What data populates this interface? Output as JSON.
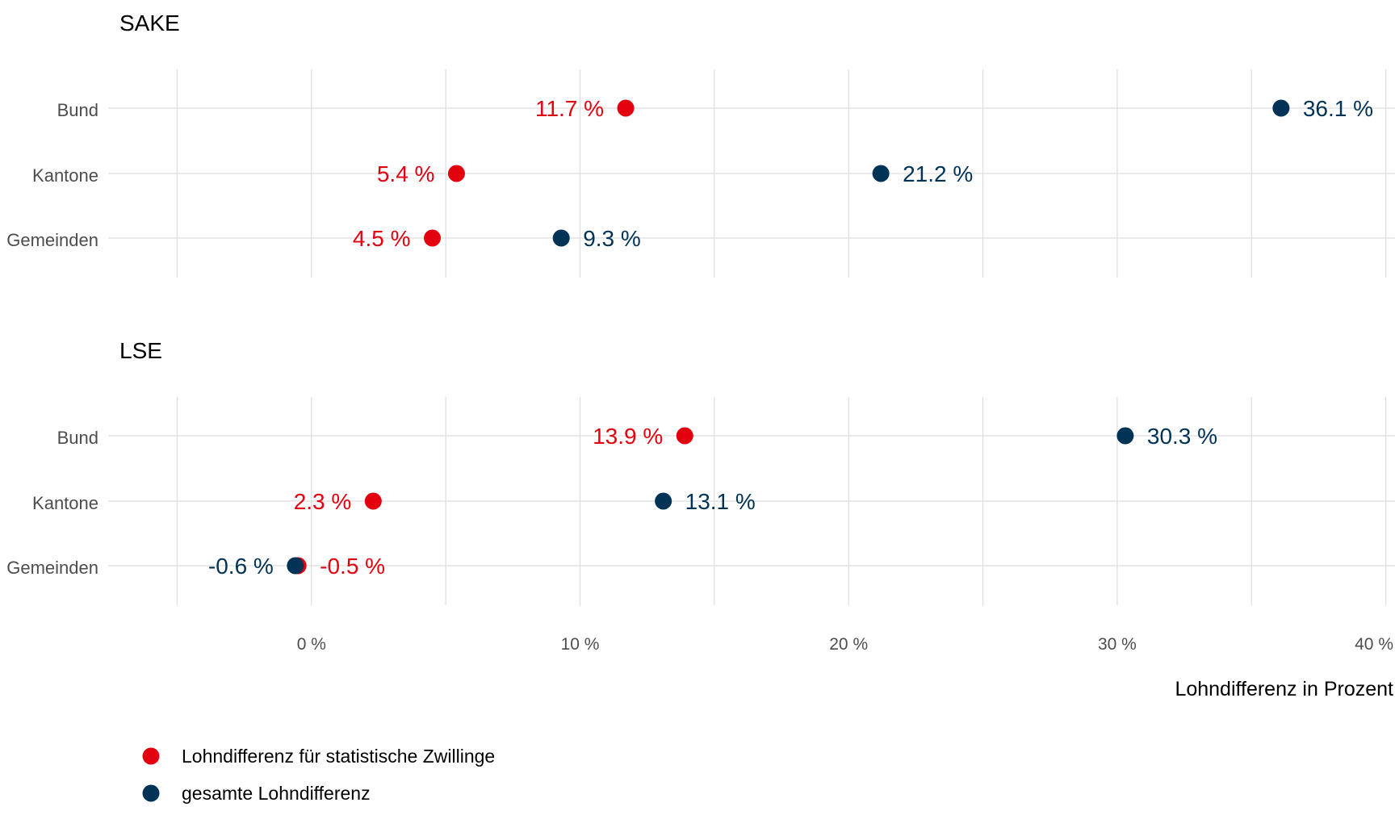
{
  "chart_data": {
    "type": "scatter",
    "xlabel": "Lohndifferenz in Prozent",
    "x_ticks": [
      0,
      10,
      20,
      30,
      40
    ],
    "x_tick_labels": [
      "0 %",
      "10 %",
      "20 %",
      "30 %",
      "40 %"
    ],
    "xlim": [
      -5,
      40
    ],
    "grid": true,
    "legend_position": "bottom-left",
    "colors": {
      "twins": "#e3000f",
      "total": "#003355"
    },
    "legend": [
      {
        "key": "twins",
        "label": "Lohndifferenz für statistische Zwillinge"
      },
      {
        "key": "total",
        "label": "gesamte Lohndifferenz"
      }
    ],
    "panels": [
      {
        "title": "SAKE",
        "categories": [
          "Bund",
          "Kantone",
          "Gemeinden"
        ],
        "twins": [
          11.7,
          5.4,
          4.5
        ],
        "total": [
          36.1,
          21.2,
          9.3
        ],
        "twins_labels": [
          "11.7 %",
          "5.4 %",
          "4.5 %"
        ],
        "total_labels": [
          "36.1 %",
          "21.2 %",
          "9.3 %"
        ]
      },
      {
        "title": "LSE",
        "categories": [
          "Bund",
          "Kantone",
          "Gemeinden"
        ],
        "twins": [
          13.9,
          2.3,
          -0.5
        ],
        "total": [
          30.3,
          13.1,
          -0.6
        ],
        "twins_labels": [
          "13.9 %",
          "2.3 %",
          "-0.5 %"
        ],
        "total_labels": [
          "30.3 %",
          "13.1 %",
          "-0.6 %"
        ]
      }
    ]
  }
}
